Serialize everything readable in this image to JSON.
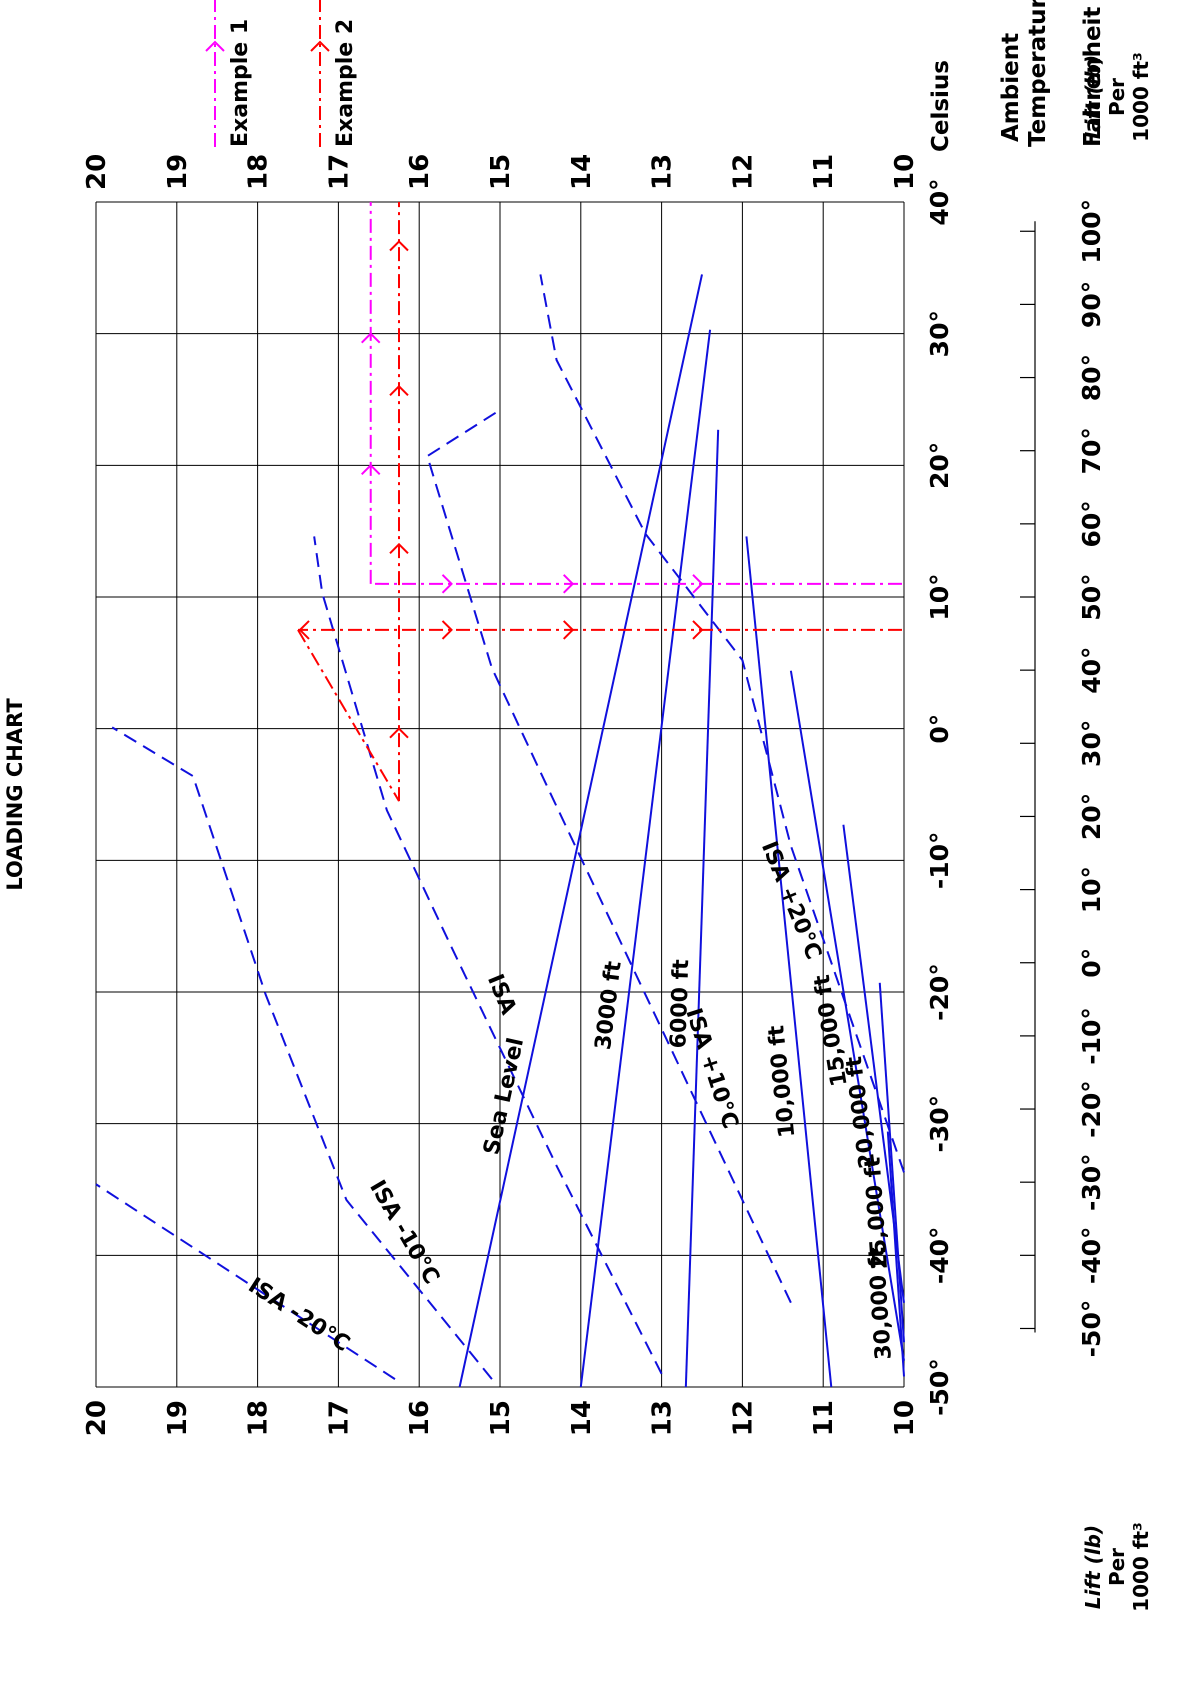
{
  "chart_data": {
    "type": "line",
    "title": "LOADING CHART",
    "x_axis": {
      "label_celsius": "Celsius",
      "range": [
        -50,
        40
      ],
      "celsius_ticks": [
        -50,
        -40,
        -30,
        -20,
        -10,
        0,
        10,
        20,
        30,
        40
      ],
      "fahrenheit_ticks": [
        -50,
        -40,
        -30,
        -20,
        -10,
        0,
        10,
        20,
        30,
        40,
        50,
        60,
        70,
        80,
        90,
        100
      ],
      "fahrenheit_label": "Fahrenheit",
      "ambient_label_1": "Ambient",
      "ambient_label_2": "Temperature"
    },
    "y_axis": {
      "range": [
        10,
        20
      ],
      "ticks": [
        10,
        11,
        12,
        13,
        14,
        15,
        16,
        17,
        18,
        19,
        20
      ],
      "label_line1": "Lift (lb)",
      "label_line2": "Per",
      "label_line3": "1000 ft³"
    },
    "tick_suffix": "°",
    "altitude_lines": [
      {
        "label": "Sea Level",
        "points": [
          [
            -50,
            15.5
          ],
          [
            34.5,
            12.5
          ]
        ]
      },
      {
        "label": "3000 ft",
        "points": [
          [
            -50,
            14.0
          ],
          [
            30.3,
            12.4
          ]
        ]
      },
      {
        "label": "6000 ft",
        "points": [
          [
            -50,
            12.7
          ],
          [
            22.7,
            12.3
          ]
        ]
      },
      {
        "label": "10,000 ft",
        "points": [
          [
            -50,
            10.9
          ],
          [
            14.6,
            11.95
          ]
        ]
      },
      {
        "label": "15,000 ft",
        "points": [
          [
            -48,
            10.0
          ],
          [
            4.4,
            11.4
          ]
        ]
      },
      {
        "label": "20,000 ft",
        "points": [
          [
            -43.6,
            10.0
          ],
          [
            -7.3,
            10.75
          ]
        ]
      },
      {
        "label": "25,000 ft",
        "points": [
          [
            -46.6,
            10.0
          ],
          [
            -19.3,
            10.3
          ]
        ]
      },
      {
        "label": "30,000 ft",
        "points": [
          [
            -49.2,
            10.0
          ],
          [
            -30.6,
            10.2
          ]
        ]
      }
    ],
    "isa_lines": [
      {
        "label": "ISA -20°C",
        "points": [
          [
            -49.4,
            16.3
          ],
          [
            -34.6,
            20.0
          ]
        ]
      },
      {
        "label": "ISA -10°C",
        "points": [
          [
            -49.4,
            15.1
          ],
          [
            -35.8,
            16.9
          ],
          [
            -20.2,
            17.9
          ],
          [
            -3.6,
            18.8
          ],
          [
            0.1,
            19.8
          ]
        ]
      },
      {
        "label": "ISA",
        "points": [
          [
            -49.0,
            13.0
          ],
          [
            -33.2,
            14.3
          ],
          [
            -16.6,
            15.6
          ],
          [
            -6.2,
            16.4
          ],
          [
            10.3,
            17.2
          ],
          [
            14.6,
            17.3
          ]
        ]
      },
      {
        "label": "ISA +10°C",
        "points": [
          [
            -43.6,
            11.4
          ],
          [
            -24.1,
            12.9
          ],
          [
            -4.6,
            14.4
          ],
          [
            4.6,
            15.1
          ],
          [
            20.7,
            15.9
          ],
          [
            24.2,
            15.0
          ]
        ]
      },
      {
        "label": "ISA +20°C",
        "points": [
          [
            -33.7,
            10.0
          ],
          [
            -8.9,
            11.4
          ],
          [
            5.2,
            12.0
          ],
          [
            14.8,
            13.2
          ],
          [
            28.0,
            14.3
          ],
          [
            34.5,
            14.5
          ]
        ]
      }
    ],
    "examples": [
      {
        "label": "Example 1",
        "color": "#ff00ff",
        "temp": 11.0,
        "lift": 16.6,
        "start_alt_lift": 16.6
      },
      {
        "label": "Example 2",
        "color": "#ff0000",
        "temp": 7.5,
        "lift": 16.25,
        "start_alt_lift": 17.5
      }
    ],
    "grid": true,
    "legend_position": "top-right"
  }
}
